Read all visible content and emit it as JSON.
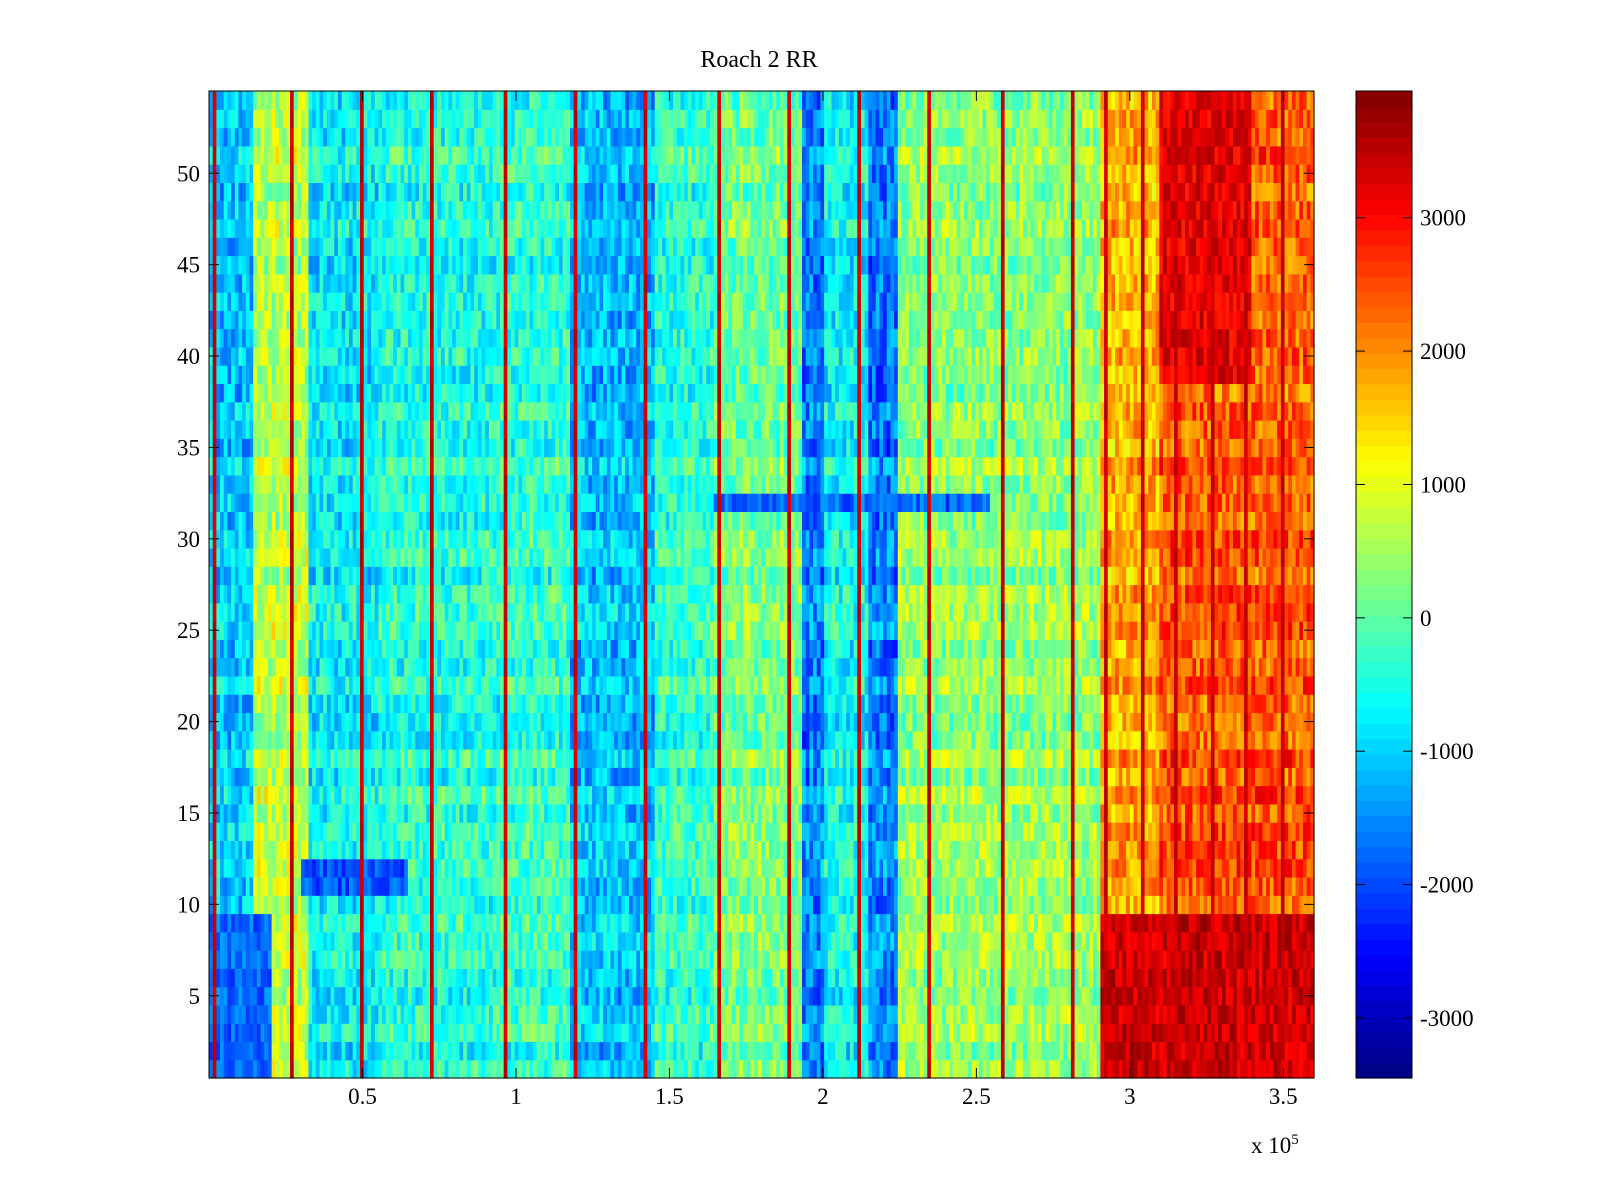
{
  "chart_data": {
    "type": "heatmap",
    "title": "Roach 2 RR",
    "xlabel": "",
    "ylabel": "",
    "x_multiplier_label": "x 10",
    "x_multiplier_exponent": "5",
    "x_multiplier": 100000,
    "xlim": [
      0,
      3.6
    ],
    "ylim": [
      0.5,
      54.5
    ],
    "x_ticks": [
      0.5,
      1,
      1.5,
      2,
      2.5,
      3,
      3.5
    ],
    "x_tick_labels": [
      "0.5",
      "1",
      "1.5",
      "2",
      "2.5",
      "3",
      "3.5"
    ],
    "y_ticks": [
      5,
      10,
      15,
      20,
      25,
      30,
      35,
      40,
      45,
      50
    ],
    "y_tick_labels": [
      "5",
      "10",
      "15",
      "20",
      "25",
      "30",
      "35",
      "40",
      "45",
      "50"
    ],
    "rows": 54,
    "colorbar": {
      "colormap": "jet",
      "clim": [
        -3450,
        3950
      ],
      "ticks": [
        -3000,
        -2000,
        -1000,
        0,
        1000,
        2000,
        3000
      ],
      "tick_labels": [
        "-3000",
        "-2000",
        "-1000",
        "0",
        "1000",
        "2000",
        "3000"
      ]
    },
    "x_segments": [
      {
        "x": [
          0.0,
          0.15
        ],
        "mean": -1000
      },
      {
        "x": [
          0.15,
          0.32
        ],
        "mean": 700
      },
      {
        "x": [
          0.32,
          0.55
        ],
        "mean": -700
      },
      {
        "x": [
          0.55,
          0.95
        ],
        "mean": -400
      },
      {
        "x": [
          0.95,
          1.18
        ],
        "mean": -300
      },
      {
        "x": [
          1.18,
          1.45
        ],
        "mean": -1100
      },
      {
        "x": [
          1.45,
          1.65
        ],
        "mean": -300
      },
      {
        "x": [
          1.65,
          1.93
        ],
        "mean": 200
      },
      {
        "x": [
          1.93,
          2.0
        ],
        "mean": -1600
      },
      {
        "x": [
          2.0,
          2.15
        ],
        "mean": -600
      },
      {
        "x": [
          2.15,
          2.25
        ],
        "mean": -1600
      },
      {
        "x": [
          2.25,
          2.9
        ],
        "mean": 400
      },
      {
        "x": [
          2.9,
          3.1
        ],
        "mean": 1800
      },
      {
        "x": [
          3.1,
          3.6
        ],
        "mean": 2400
      }
    ],
    "y_regions": [
      {
        "rows": [
          1,
          9
        ],
        "x": [
          0.0,
          0.2
        ],
        "mean": -1800
      },
      {
        "rows": [
          1,
          9
        ],
        "x": [
          2.9,
          3.6
        ],
        "mean": 3400
      },
      {
        "rows": [
          39,
          54
        ],
        "x": [
          3.1,
          3.4
        ],
        "mean": 3200
      },
      {
        "rows": [
          32,
          32
        ],
        "x": [
          1.65,
          2.55
        ],
        "mean": -1800
      },
      {
        "rows": [
          11,
          12
        ],
        "x": [
          0.3,
          0.65
        ],
        "mean": -1900
      }
    ],
    "spike_columns": [
      0.02,
      0.27,
      0.5,
      0.73,
      0.96,
      1.19,
      1.42,
      1.66,
      1.89,
      2.12,
      2.35,
      2.58,
      2.81,
      2.92,
      3.04,
      3.15,
      3.27,
      3.38,
      3.5
    ],
    "spike_value": 3400
  }
}
